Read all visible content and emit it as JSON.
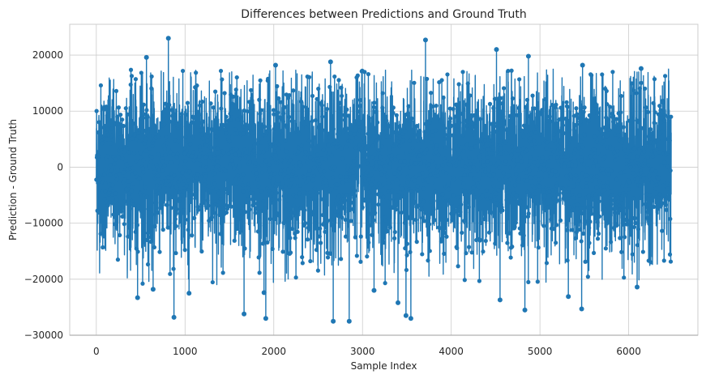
{
  "chart_data": {
    "type": "line",
    "title": "Differences between Predictions and Ground Truth",
    "xlabel": "Sample Index",
    "ylabel": "Prediction - Ground Truth",
    "xlim": [
      -300,
      6780
    ],
    "ylim": [
      -30000,
      25500
    ],
    "xticks": [
      0,
      1000,
      2000,
      3000,
      4000,
      5000,
      6000
    ],
    "xtick_labels": [
      "0",
      "1000",
      "2000",
      "3000",
      "4000",
      "5000",
      "6000"
    ],
    "yticks": [
      -30000,
      -20000,
      -10000,
      0,
      10000,
      20000
    ],
    "ytick_labels": [
      "−30000",
      "−20000",
      "−10000",
      "0",
      "10000",
      "20000"
    ],
    "grid": true,
    "marker": "circle",
    "series_color": "#1f77b4",
    "n_samples": 6480,
    "std_estimate": 7200,
    "extreme_points": [
      {
        "x": 812,
        "y": 23000
      },
      {
        "x": 3710,
        "y": 22700
      },
      {
        "x": 4510,
        "y": 21000
      },
      {
        "x": 4870,
        "y": 19800
      },
      {
        "x": 565,
        "y": 19600
      },
      {
        "x": 2640,
        "y": 18800
      },
      {
        "x": 5480,
        "y": 18200
      },
      {
        "x": 6140,
        "y": 17600
      },
      {
        "x": 2020,
        "y": 18200
      },
      {
        "x": 875,
        "y": -26800
      },
      {
        "x": 2670,
        "y": -27500
      },
      {
        "x": 2850,
        "y": -27500
      },
      {
        "x": 1910,
        "y": -27000
      },
      {
        "x": 3545,
        "y": -27000
      },
      {
        "x": 3490,
        "y": -26500
      },
      {
        "x": 1665,
        "y": -26200
      },
      {
        "x": 4830,
        "y": -25500
      },
      {
        "x": 5470,
        "y": -25300
      },
      {
        "x": 3400,
        "y": -24200
      },
      {
        "x": 465,
        "y": -23300
      },
      {
        "x": 5320,
        "y": -23100
      },
      {
        "x": 4550,
        "y": -23700
      },
      {
        "x": 1045,
        "y": -22500
      },
      {
        "x": 1890,
        "y": -22400
      },
      {
        "x": 640,
        "y": -21800
      },
      {
        "x": 6095,
        "y": -21400
      },
      {
        "x": 3130,
        "y": -22000
      }
    ]
  }
}
